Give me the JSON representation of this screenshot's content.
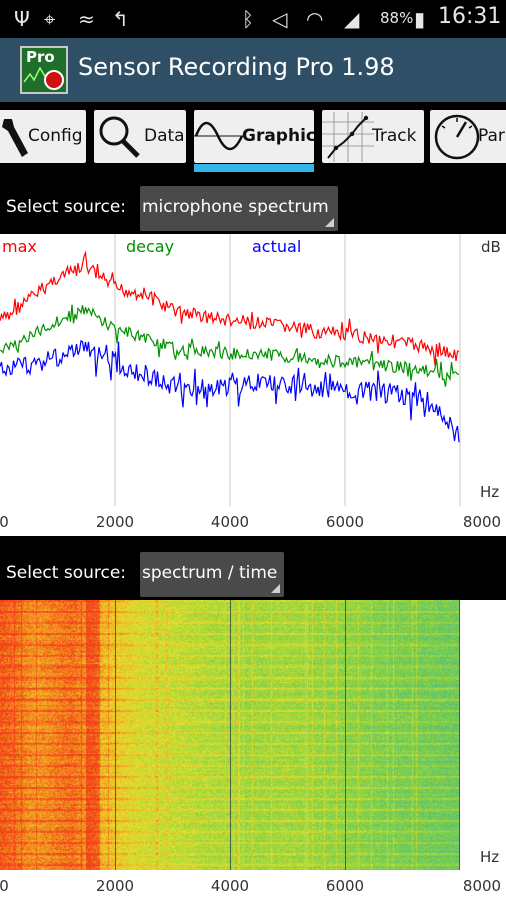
{
  "status_bar": {
    "battery_percent": "88%",
    "time": "16:31",
    "icons": [
      "usb-icon",
      "gps-icon",
      "nfc-icon",
      "call-icon",
      "bluetooth-icon",
      "mute-icon",
      "wifi-icon",
      "signal-icon",
      "battery-icon"
    ]
  },
  "app": {
    "title": "Sensor Recording Pro 1.98",
    "icon_label": "Pro"
  },
  "tabs": [
    {
      "label": "Config",
      "icon": "wrench-icon"
    },
    {
      "label": "Data",
      "icon": "magnifier-icon"
    },
    {
      "label": "Graphic",
      "icon": "sine-wave-icon",
      "selected": true
    },
    {
      "label": "Track",
      "icon": "track-icon"
    },
    {
      "label": "Par",
      "icon": "gauge-icon"
    }
  ],
  "source_top": {
    "label": "Select source:",
    "value": "microphone spectrum"
  },
  "source_bottom": {
    "label": "Select source:",
    "value": "spectrum / time"
  },
  "colors": {
    "max": "#ff0000",
    "decay": "#009000",
    "actual": "#0000ff",
    "indicator": "#33b5e5",
    "action_bar": "#2e4f66"
  },
  "chart_data": [
    {
      "type": "line",
      "series": [
        {
          "name": "max",
          "color": "#ff0000"
        },
        {
          "name": "decay",
          "color": "#009000"
        },
        {
          "name": "actual",
          "color": "#0000ff"
        }
      ],
      "x_unit_label": "Hz",
      "y_unit_label": "dB",
      "x_tick_labels": [
        "0",
        "2000",
        "4000",
        "6000",
        "8000"
      ],
      "xlim": [
        0,
        8000
      ],
      "x_max_plotted": 8000,
      "grid": true,
      "y_range_fraction": "upper-half",
      "note_values": {
        "max": {
          "x": [
            0,
            500,
            1000,
            1500,
            2000,
            2500,
            3000,
            3500,
            4000,
            4500,
            5000,
            5500,
            6000,
            6500,
            7000,
            7500,
            8000
          ],
          "y": [
            0.32,
            0.24,
            0.16,
            0.12,
            0.2,
            0.22,
            0.28,
            0.3,
            0.32,
            0.33,
            0.34,
            0.36,
            0.37,
            0.38,
            0.4,
            0.42,
            0.45
          ]
        },
        "decay": {
          "x": [
            0,
            500,
            1000,
            1500,
            2000,
            2500,
            3000,
            3500,
            4000,
            4500,
            5000,
            5500,
            6000,
            6500,
            7000,
            7500,
            8000
          ],
          "y": [
            0.43,
            0.38,
            0.32,
            0.28,
            0.35,
            0.38,
            0.42,
            0.43,
            0.44,
            0.44,
            0.45,
            0.46,
            0.47,
            0.48,
            0.49,
            0.51,
            0.52
          ]
        },
        "actual": {
          "x": [
            0,
            500,
            1000,
            1500,
            2000,
            2500,
            3000,
            3500,
            4000,
            4500,
            5000,
            5500,
            6000,
            6500,
            7000,
            7500,
            8000
          ],
          "y": [
            0.5,
            0.48,
            0.45,
            0.42,
            0.47,
            0.52,
            0.56,
            0.57,
            0.56,
            0.55,
            0.55,
            0.57,
            0.58,
            0.58,
            0.59,
            0.62,
            0.75
          ]
        }
      }
    },
    {
      "type": "heatmap",
      "x_unit_label": "Hz",
      "x_tick_labels": [
        "0",
        "2000",
        "4000",
        "6000",
        "8000"
      ],
      "xlim": [
        0,
        8000
      ],
      "x_max_plotted": 8000,
      "gradient": [
        "#f2401a",
        "#f2a020",
        "#e8e030",
        "#9ad63a",
        "#5ec46a",
        "#4a9fb0"
      ],
      "intensity_profile": [
        0.95,
        0.8,
        0.9,
        0.7,
        0.55,
        0.5,
        0.45,
        0.4,
        0.42,
        0.38,
        0.35,
        0.3,
        0.28,
        0.25
      ]
    }
  ]
}
